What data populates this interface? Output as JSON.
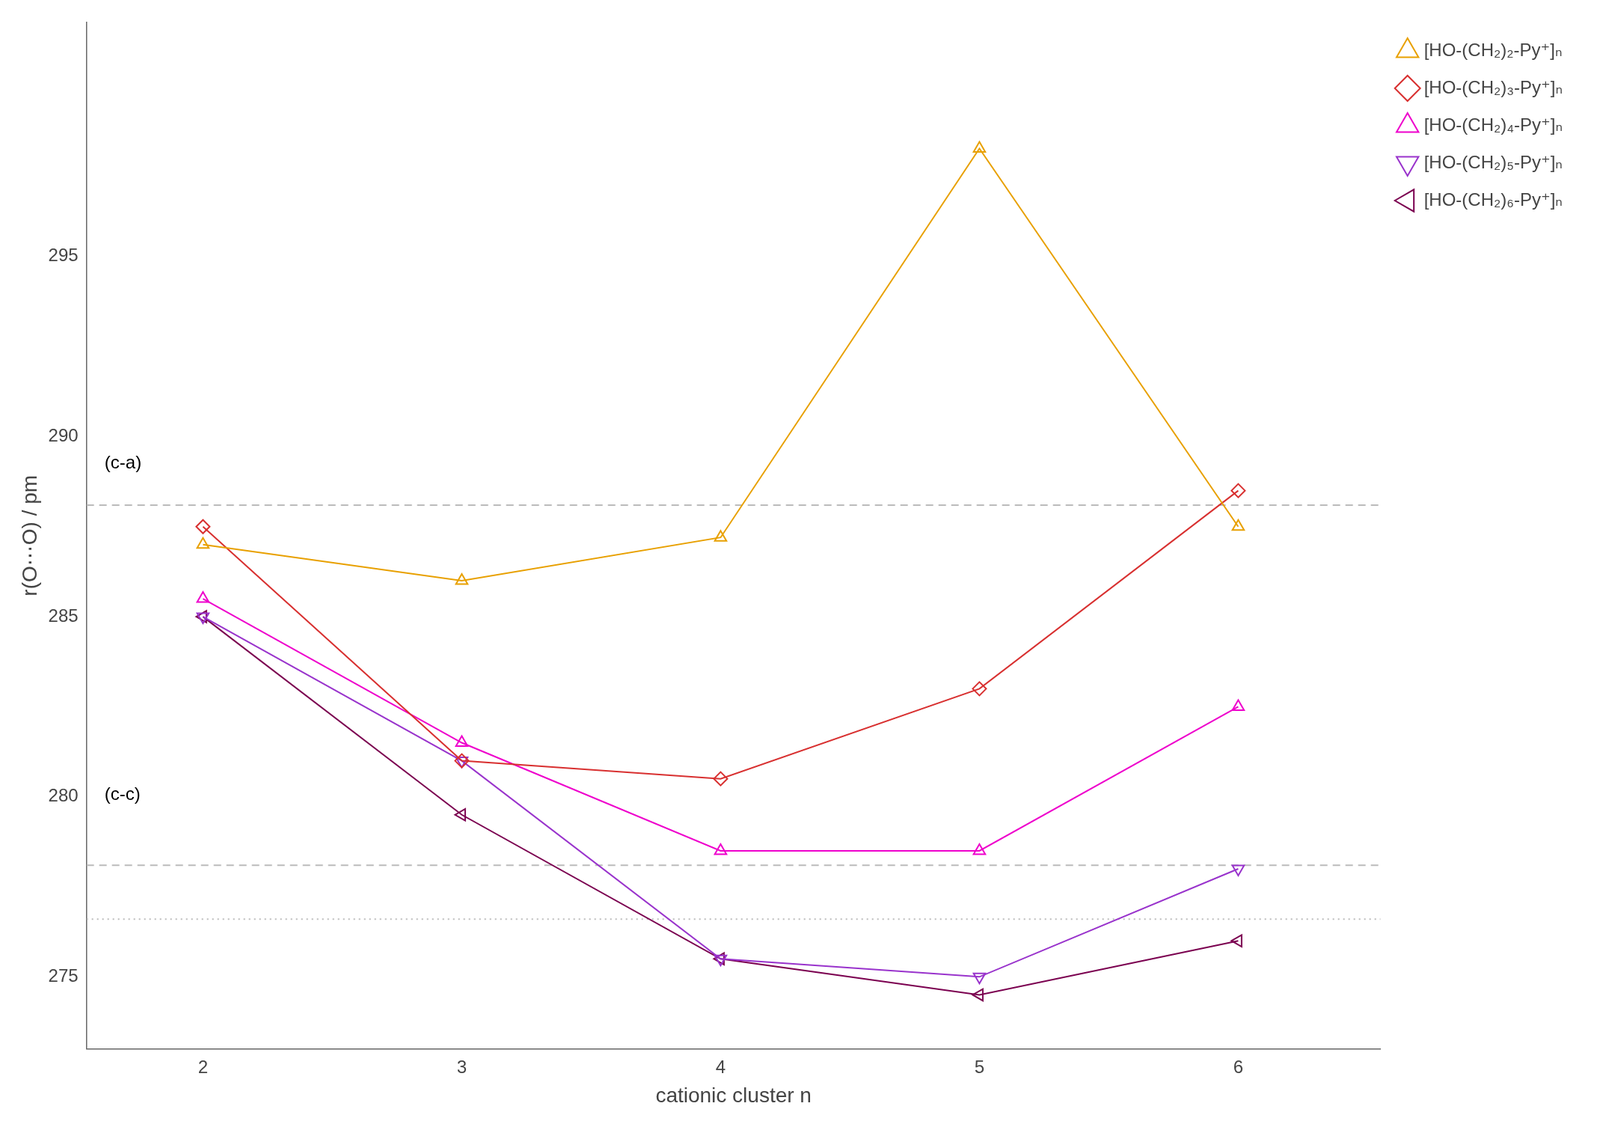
{
  "chart_data": {
    "type": "line",
    "x": [
      2,
      3,
      4,
      5,
      6
    ],
    "series": [
      {
        "name": "[HO-(CH₂)₂-Py⁺]ₙ",
        "color": "#E8A000",
        "marker": "triangle_up",
        "values": [
          287.0,
          286.0,
          287.2,
          298.0,
          287.5
        ]
      },
      {
        "name": "[HO-(CH₂)₃-Py⁺]ₙ",
        "color": "#D83030",
        "marker": "diamond",
        "values": [
          287.5,
          281.0,
          280.5,
          283.0,
          288.5
        ]
      },
      {
        "name": "[HO-(CH₂)₄-Py⁺]ₙ",
        "color": "#EE00CC",
        "marker": "triangle_up",
        "values": [
          285.5,
          281.5,
          278.5,
          278.5,
          282.5
        ]
      },
      {
        "name": "[HO-(CH₂)₅-Py⁺]ₙ",
        "color": "#9933CC",
        "marker": "triangle_down",
        "values": [
          285.0,
          281.0,
          275.5,
          275.0,
          278.0
        ]
      },
      {
        "name": "[HO-(CH₂)₆-Py⁺]ₙ",
        "color": "#7B0050",
        "marker": "triangle_left",
        "values": [
          285.0,
          279.5,
          275.5,
          274.5,
          276.0
        ]
      }
    ],
    "hlines": [
      {
        "y": 288.1,
        "line_style": "dashed",
        "color": "#BBBBBB"
      },
      {
        "y": 278.1,
        "line_style": "dashed",
        "color": "#BBBBBB"
      },
      {
        "y": 276.6,
        "line_style": "dotted",
        "color": "#BBBBBB"
      }
    ],
    "annotations": [
      {
        "text": "(c-a)",
        "x": 1.62,
        "y": 289.0
      },
      {
        "text": "(c-c)",
        "x": 1.62,
        "y": 279.8
      }
    ],
    "x_label": "cationic cluster n",
    "y_label": "r(O⋯O) / pm",
    "xlim": [
      1.55,
      6.55
    ],
    "xticks": [
      2,
      3,
      4,
      5,
      6
    ],
    "ylim": [
      273.0,
      301.5
    ],
    "yticks": [
      275,
      280,
      285,
      290,
      295
    ],
    "grid": false,
    "legend": "right"
  }
}
